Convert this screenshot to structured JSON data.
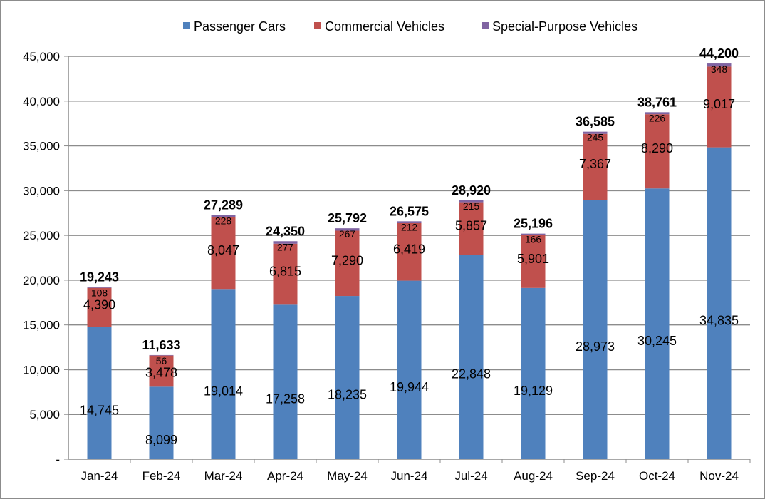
{
  "chart_data": {
    "type": "bar",
    "stacked": true,
    "categories": [
      "Jan-24",
      "Feb-24",
      "Mar-24",
      "Apr-24",
      "May-24",
      "Jun-24",
      "Jul-24",
      "Aug-24",
      "Sep-24",
      "Oct-24",
      "Nov-24"
    ],
    "series": [
      {
        "name": "Passenger Cars",
        "color": "#4f81bd",
        "values": [
          14745,
          8099,
          19014,
          17258,
          18235,
          19944,
          22848,
          19129,
          28973,
          30245,
          34835
        ]
      },
      {
        "name": "Commercial Vehicles",
        "color": "#c0504d",
        "values": [
          4390,
          3478,
          8047,
          6815,
          7290,
          6419,
          5857,
          5901,
          7367,
          8290,
          9017
        ]
      },
      {
        "name": "Special-Purpose Vehicles",
        "color": "#8064a2",
        "values": [
          108,
          56,
          228,
          277,
          267,
          212,
          215,
          166,
          245,
          226,
          348
        ]
      }
    ],
    "totals": [
      19243,
      11633,
      27289,
      24350,
      25792,
      26575,
      28920,
      25196,
      36585,
      38761,
      44200
    ],
    "ylim": [
      0,
      45000
    ],
    "yticks": [
      0,
      5000,
      10000,
      15000,
      20000,
      25000,
      30000,
      35000,
      40000,
      45000
    ],
    "ytick_labels": [
      "-",
      "5,000",
      "10,000",
      "15,000",
      "20,000",
      "25,000",
      "30,000",
      "35,000",
      "40,000",
      "45,000"
    ],
    "grid": true,
    "legend_position": "top"
  }
}
